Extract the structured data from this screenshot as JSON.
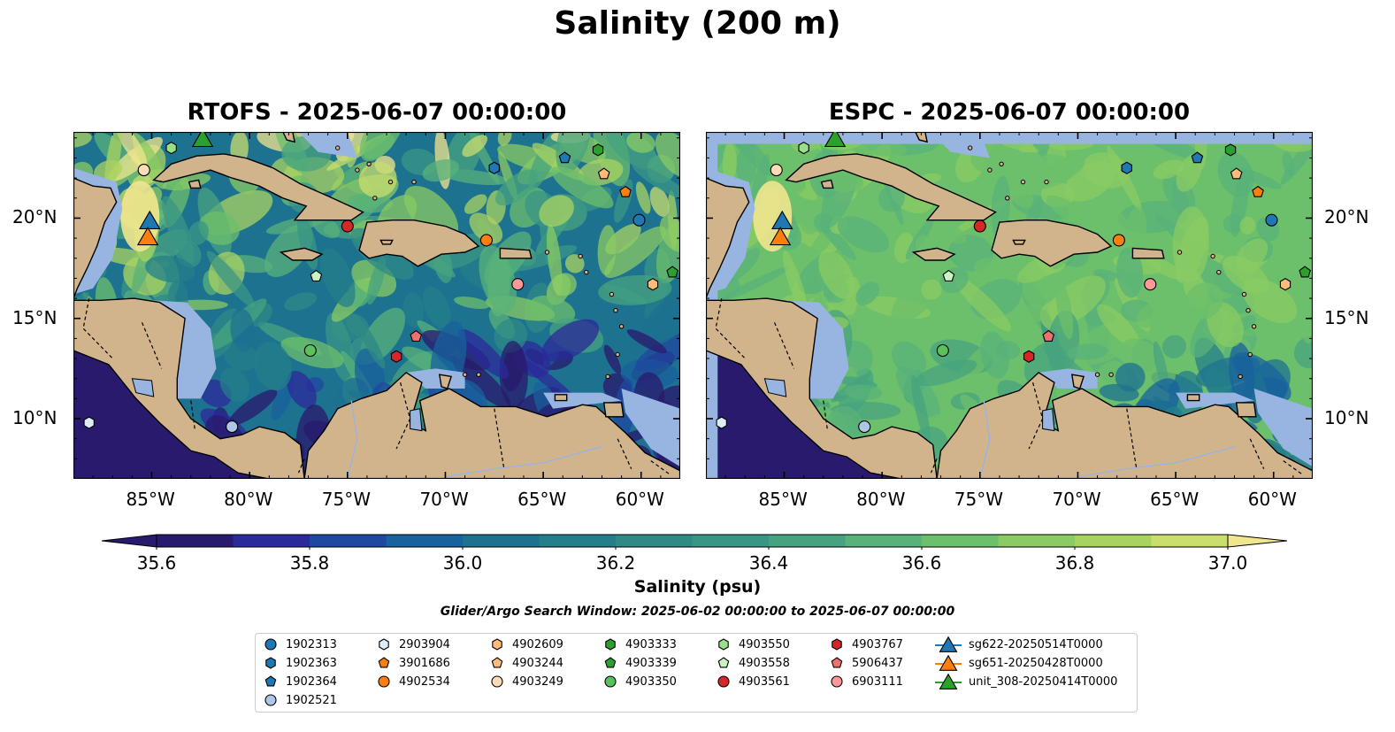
{
  "title": "Salinity (200 m)",
  "panels": [
    {
      "title": "RTOFS - 2025-06-07 00:00:00"
    },
    {
      "title": "ESPC - 2025-06-07 00:00:00"
    }
  ],
  "axes": {
    "lon_ticks": [
      "85°W",
      "80°W",
      "75°W",
      "70°W",
      "65°W",
      "60°W"
    ],
    "lat_ticks": [
      "20°N",
      "15°N",
      "10°N"
    ]
  },
  "colorbar": {
    "label": "Salinity (psu)",
    "ticks": [
      "35.6",
      "35.8",
      "36.0",
      "36.2",
      "36.4",
      "36.6",
      "36.8",
      "37.0"
    ],
    "range": [
      35.6,
      37.0
    ],
    "colors": [
      "#2a1a6e",
      "#2b2a9a",
      "#1f48a0",
      "#18629e",
      "#1d7290",
      "#247f8a",
      "#2f8a86",
      "#3a9684",
      "#47a37f",
      "#58b27a",
      "#6cbf6b",
      "#8acb63",
      "#a9d361",
      "#c9de6e",
      "#f1e68e"
    ]
  },
  "search_window": "Glider/Argo Search Window: 2025-06-02 00:00:00 to 2025-06-07 00:00:00",
  "legend": {
    "columns": [
      [
        {
          "label": "1902313",
          "shape": "circle",
          "color": "#1f77b4"
        },
        {
          "label": "1902363",
          "shape": "hexagon",
          "color": "#1f77b4"
        },
        {
          "label": "1902364",
          "shape": "pentagon",
          "color": "#1f77b4"
        },
        {
          "label": "1902521",
          "shape": "circle",
          "color": "#aec7e8"
        }
      ],
      [
        {
          "label": "2903904",
          "shape": "hexagon",
          "color": "#dceefa"
        },
        {
          "label": "3901686",
          "shape": "pentagon",
          "color": "#ff7f0e"
        },
        {
          "label": "4902534",
          "shape": "circle",
          "color": "#ff7f0e"
        }
      ],
      [
        {
          "label": "4902609",
          "shape": "hexagon",
          "color": "#ffbb78"
        },
        {
          "label": "4903244",
          "shape": "pentagon",
          "color": "#ffbb78"
        },
        {
          "label": "4903249",
          "shape": "circle",
          "color": "#ffdcb4"
        }
      ],
      [
        {
          "label": "4903333",
          "shape": "hexagon",
          "color": "#2ca02c"
        },
        {
          "label": "4903339",
          "shape": "pentagon",
          "color": "#2ca02c"
        },
        {
          "label": "4903350",
          "shape": "circle",
          "color": "#5cc15c"
        }
      ],
      [
        {
          "label": "4903550",
          "shape": "hexagon",
          "color": "#98df8a"
        },
        {
          "label": "4903558",
          "shape": "pentagon",
          "color": "#ccf2c4"
        },
        {
          "label": "4903561",
          "shape": "circle",
          "color": "#d62728"
        }
      ],
      [
        {
          "label": "4903767",
          "shape": "hexagon",
          "color": "#d62728"
        },
        {
          "label": "5906437",
          "shape": "pentagon",
          "color": "#f07070"
        },
        {
          "label": "6903111",
          "shape": "circle",
          "color": "#ff9896"
        }
      ],
      [
        {
          "label": "sg622-20250514T0000",
          "shape": "triangle",
          "color": "#1f77b4"
        },
        {
          "label": "sg651-20250428T0000",
          "shape": "triangle",
          "color": "#ff7f0e"
        },
        {
          "label": "unit_308-20250414T0000",
          "shape": "triangle",
          "color": "#2ca02c"
        }
      ]
    ]
  },
  "markers": [
    {
      "label": "1902313",
      "lon": -60.1,
      "lat": 19.9
    },
    {
      "label": "1902363",
      "lon": -67.5,
      "lat": 22.5
    },
    {
      "label": "1902364",
      "lon": -63.9,
      "lat": 23.0
    },
    {
      "label": "1902521",
      "lon": -80.9,
      "lat": 9.6
    },
    {
      "label": "2903904",
      "lon": -88.2,
      "lat": 9.8
    },
    {
      "label": "3901686",
      "lon": -60.8,
      "lat": 21.3
    },
    {
      "label": "4902534",
      "lon": -67.9,
      "lat": 18.9
    },
    {
      "label": "4902609",
      "lon": -59.4,
      "lat": 16.7
    },
    {
      "label": "4903244",
      "lon": -61.9,
      "lat": 22.2
    },
    {
      "label": "4903249",
      "lon": -85.4,
      "lat": 22.4
    },
    {
      "label": "4903333",
      "lon": -62.2,
      "lat": 23.4
    },
    {
      "label": "4903339",
      "lon": -58.4,
      "lat": 17.3
    },
    {
      "label": "4903350",
      "lon": -76.9,
      "lat": 13.4
    },
    {
      "label": "4903550",
      "lon": -84.0,
      "lat": 23.5
    },
    {
      "label": "4903558",
      "lon": -76.6,
      "lat": 17.1
    },
    {
      "label": "4903561",
      "lon": -75.0,
      "lat": 19.6
    },
    {
      "label": "4903767",
      "lon": -72.5,
      "lat": 13.1
    },
    {
      "label": "5906437",
      "lon": -71.5,
      "lat": 14.1
    },
    {
      "label": "6903111",
      "lon": -66.3,
      "lat": 16.7
    },
    {
      "label": "sg622-20250514T0000",
      "lon": -85.1,
      "lat": 19.9
    },
    {
      "label": "sg651-20250428T0000",
      "lon": -85.2,
      "lat": 19.1
    },
    {
      "label": "unit_308-20250414T0000",
      "lon": -82.4,
      "lat": 24.0
    }
  ]
}
